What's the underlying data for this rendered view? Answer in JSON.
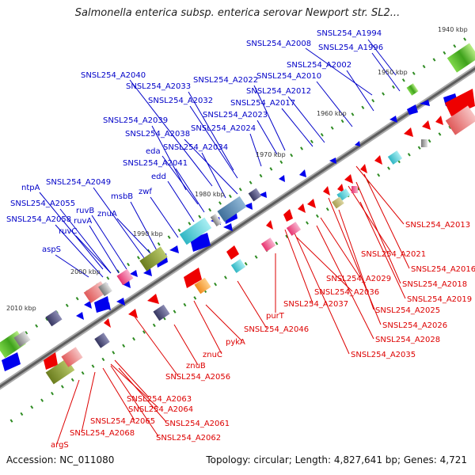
{
  "title": "Salmonella enterica subsp. enterica serovar Newport str. SL2...",
  "footer": {
    "accession": "Accession: NC_011080",
    "summary": "Topology: circular; Length: 4,827,641 bp; Genes: 4,721"
  },
  "colors": {
    "forward_labels": "#0000c8",
    "reverse_labels": "#dd0000",
    "forward_features": "#0000ee",
    "reverse_features": "#ee0000",
    "backbone": "#777777",
    "tick_marks": "#2e8b22"
  },
  "ruler": {
    "ticks": [
      "1940 kbp",
      "1950 kbp",
      "1960 kbp",
      "1970 kbp",
      "1980 kbp",
      "1990 kbp",
      "2000 kbp",
      "2010 kbp"
    ]
  },
  "forward_gene_labels": [
    "SNSL254_A1994",
    "SNSL254_A2008",
    "SNSL254_A1996",
    "SNSL254_A2002",
    "SNSL254_A2040",
    "SNSL254_A2010",
    "SNSL254_A2022",
    "SNSL254_A2033",
    "SNSL254_A2012",
    "SNSL254_A2032",
    "SNSL254_A2017",
    "SNSL254_A2023",
    "SNSL254_A2039",
    "SNSL254_A2024",
    "SNSL254_A2038",
    "eda",
    "SNSL254_A2034",
    "SNSL254_A2041",
    "edd",
    "ntpA",
    "SNSL254_A2049",
    "msbB",
    "zwf",
    "SNSL254_A2055",
    "ruvB",
    "znuA",
    "ruvA",
    "SNSL254_A2058",
    "ruvC",
    "aspS"
  ],
  "reverse_gene_labels": [
    "SNSL254_A2013",
    "SNSL254_A2021",
    "SNSL254_A2016",
    "SNSL254_A2018",
    "SNSL254_A2029",
    "SNSL254_A2036",
    "SNSL254_A2019",
    "SNSL254_A2037",
    "SNSL254_A2025",
    "purT",
    "SNSL254_A2026",
    "SNSL254_A2046",
    "SNSL254_A2028",
    "pykA",
    "znuC",
    "SNSL254_A2035",
    "znuB",
    "SNSL254_A2056",
    "SNSL254_A2063",
    "SNSL254_A2064",
    "SNSL254_A2065",
    "SNSL254_A2061",
    "SNSL254_A2068",
    "SNSL254_A2062",
    "argS"
  ]
}
